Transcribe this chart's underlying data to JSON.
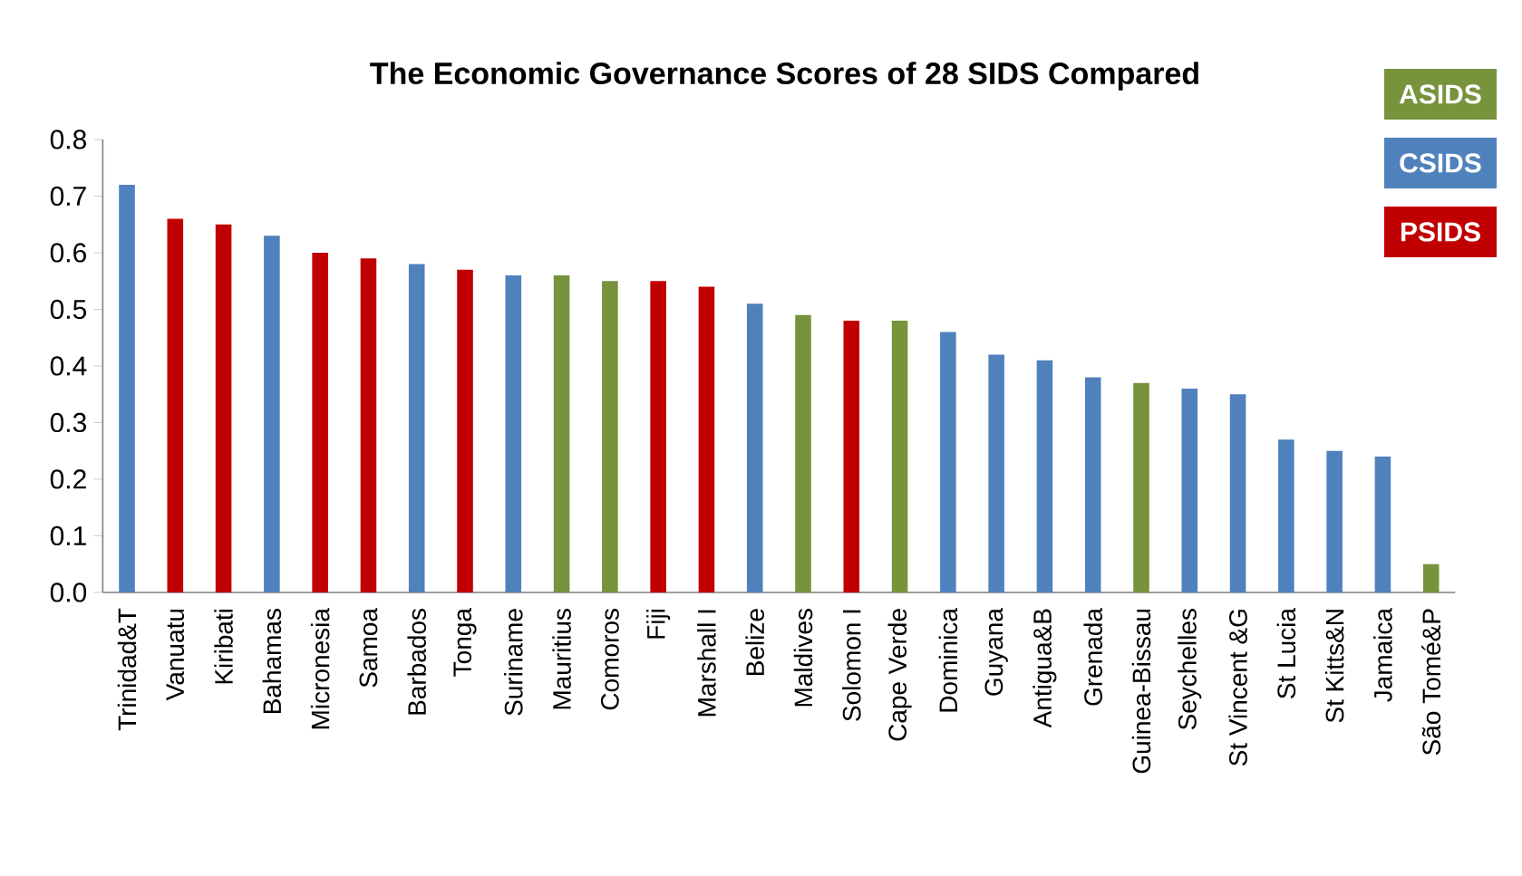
{
  "chart_data": {
    "type": "bar",
    "title": "The Economic Governance Scores of 28 SIDS Compared",
    "categories": [
      "Trinidad&T",
      "Vanuatu",
      "Kiribati",
      "Bahamas",
      "Micronesia",
      "Samoa",
      "Barbados",
      "Tonga",
      "Suriname",
      "Mauritius",
      "Comoros",
      "Fiji",
      "Marshall I",
      "Belize",
      "Maldives",
      "Solomon I",
      "Cape Verde",
      "Dominica",
      "Guyana",
      "Antigua&B",
      "Grenada",
      "Guinea-Bissau",
      "Seychelles",
      "St Vincent &G",
      "St Lucia",
      "St Kitts&N",
      "Jamaica",
      "São Tomé&P"
    ],
    "series": [
      {
        "name": "ASIDS",
        "color": "#77933c",
        "values": [
          null,
          null,
          null,
          null,
          null,
          null,
          null,
          null,
          null,
          0.56,
          0.55,
          null,
          null,
          null,
          0.49,
          null,
          0.48,
          null,
          null,
          null,
          null,
          0.37,
          null,
          null,
          null,
          null,
          null,
          0.05
        ]
      },
      {
        "name": "CSIDS",
        "color": "#4f81bd",
        "values": [
          0.72,
          null,
          null,
          0.63,
          null,
          null,
          0.58,
          null,
          0.56,
          null,
          null,
          null,
          null,
          0.51,
          null,
          null,
          null,
          0.46,
          0.42,
          0.41,
          0.38,
          null,
          0.36,
          0.35,
          0.27,
          0.25,
          0.24,
          null
        ]
      },
      {
        "name": "PSIDS",
        "color": "#c00000",
        "values": [
          null,
          0.66,
          0.65,
          null,
          0.6,
          0.59,
          null,
          0.57,
          null,
          null,
          null,
          0.55,
          0.54,
          null,
          null,
          0.48,
          null,
          null,
          null,
          null,
          null,
          null,
          null,
          null,
          null,
          null,
          null,
          null
        ]
      }
    ],
    "ylim": [
      0,
      0.8
    ],
    "yticks": [
      {
        "value": 0,
        "label": "0.0"
      },
      0.1,
      0.2,
      0.3,
      0.4,
      0.5,
      0.6,
      0.7,
      0.8
    ],
    "grid": false,
    "legend": "top right"
  }
}
